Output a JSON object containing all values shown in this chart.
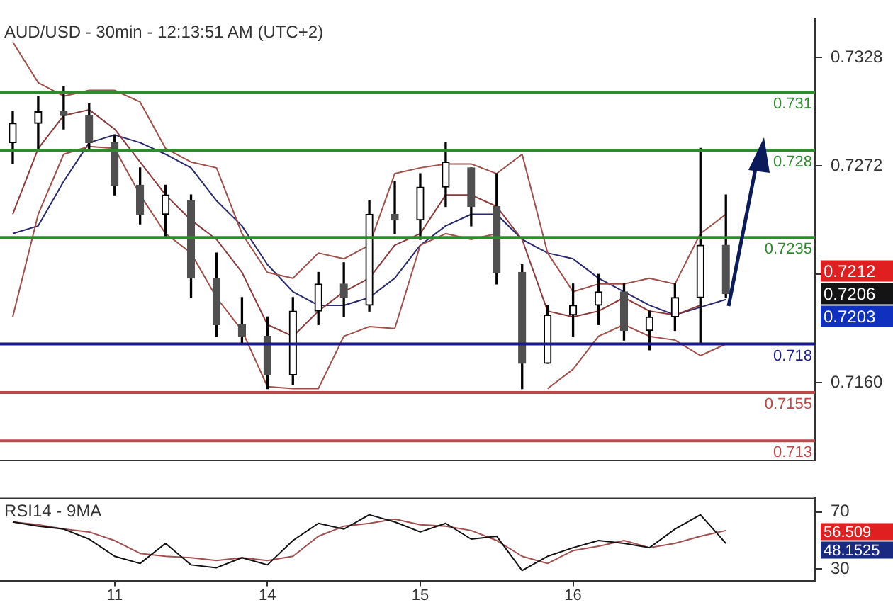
{
  "chart_data": [
    {
      "type": "candlestick",
      "title": "AUD/USD - 30min - 12:13:51 AM (UTC+2)",
      "categories": [
        null,
        null,
        null,
        null,
        "11",
        null,
        null,
        null,
        null,
        null,
        "14",
        null,
        null,
        null,
        null,
        null,
        "15",
        null,
        null,
        null,
        null,
        null,
        "16",
        null,
        null,
        null,
        null,
        null,
        null,
        null,
        null,
        null
      ],
      "ohlc": [
        [
          0.7284,
          0.73,
          0.7273,
          0.7294
        ],
        [
          0.7294,
          0.7308,
          0.7281,
          0.73
        ],
        [
          0.73,
          0.7313,
          0.7291,
          0.7298
        ],
        [
          0.7298,
          0.7304,
          0.7281,
          0.7284
        ],
        [
          0.7284,
          0.7288,
          0.7257,
          0.7262
        ],
        [
          0.7262,
          0.7271,
          0.7242,
          0.7247
        ],
        [
          0.7247,
          0.7262,
          0.7235,
          0.7257
        ],
        [
          0.7254,
          0.7257,
          0.7204,
          0.7214
        ],
        [
          0.7214,
          0.7227,
          0.7184,
          0.719
        ],
        [
          0.719,
          0.7204,
          0.718,
          0.7184
        ],
        [
          0.7184,
          0.7194,
          0.7157,
          0.7164
        ],
        [
          0.7164,
          0.7204,
          0.7159,
          0.7197
        ],
        [
          0.7197,
          0.7217,
          0.719,
          0.7211
        ],
        [
          0.7211,
          0.7222,
          0.7194,
          0.7204
        ],
        [
          0.72,
          0.7254,
          0.7197,
          0.7247
        ],
        [
          0.7247,
          0.7264,
          0.7237,
          0.7244
        ],
        [
          0.7244,
          0.7268,
          0.7234,
          0.7261
        ],
        [
          0.7261,
          0.7284,
          0.7251,
          0.7274
        ],
        [
          0.7271,
          0.7271,
          0.7241,
          0.7251
        ],
        [
          0.7251,
          0.7268,
          0.7211,
          0.7217
        ],
        [
          0.7217,
          0.7221,
          0.7157,
          0.717
        ],
        [
          0.717,
          0.72,
          0.717,
          0.7195
        ],
        [
          0.7195,
          0.7211,
          0.7184,
          0.72
        ],
        [
          0.72,
          0.7216,
          0.719,
          0.7207
        ],
        [
          0.7207,
          0.7211,
          0.7182,
          0.7187
        ],
        [
          0.7187,
          0.7197,
          0.7177,
          0.7194
        ],
        [
          0.7194,
          0.7211,
          0.7187,
          0.7204
        ],
        [
          0.7204,
          0.7281,
          0.718,
          0.7231
        ],
        [
          0.7231,
          0.7257,
          0.7204,
          0.7206
        ],
        null,
        null,
        null
      ],
      "series": [
        {
          "type": "line",
          "color": "#a0504a",
          "values": [
            0.7336,
            0.7315,
            0.7308,
            0.7311,
            0.7311,
            0.7305,
            0.7281,
            0.7274,
            0.7271,
            0.7237,
            0.7217,
            0.7214,
            0.7227,
            0.7224,
            0.7231,
            0.7268,
            0.7271,
            0.7273,
            0.7273,
            0.7268,
            0.7278,
            0.7227,
            0.7207,
            0.7211,
            0.7211,
            0.7214,
            0.7211,
            0.7237,
            0.7247,
            null,
            null,
            null
          ]
        },
        {
          "type": "line",
          "color": "#a0504a",
          "values": [
            0.7194,
            0.7247,
            0.7278,
            0.7282,
            0.7281,
            0.7257,
            0.7237,
            0.7227,
            0.7204,
            0.7187,
            0.7158,
            0.7157,
            0.7157,
            0.7184,
            0.7189,
            0.7188,
            0.7231,
            0.7237,
            0.7234,
            0.7237,
            null,
            0.7157,
            0.7167,
            0.7184,
            0.719,
            0.7184,
            0.7182,
            0.7174,
            0.718,
            null,
            null,
            null
          ]
        },
        {
          "type": "line",
          "color": "#8a3a3a",
          "values": [
            0.7247,
            0.7281,
            0.7298,
            0.7301,
            0.7291,
            0.7274,
            0.7257,
            0.7244,
            0.7234,
            0.7217,
            0.719,
            0.7184,
            0.7197,
            0.7207,
            0.7214,
            0.7231,
            0.7237,
            0.7257,
            0.7257,
            0.7251,
            0.7234,
            0.7197,
            0.7194,
            0.7197,
            0.7204,
            0.7197,
            0.7195,
            0.72,
            null,
            null,
            null,
            null
          ]
        },
        {
          "type": "line",
          "color": "#2a2a6e",
          "values": [
            0.7237,
            0.7241,
            0.7264,
            0.7284,
            0.7288,
            0.7284,
            0.7278,
            0.7271,
            0.7254,
            0.7241,
            0.7221,
            0.7207,
            0.72,
            0.72,
            0.7204,
            0.7214,
            0.7231,
            0.7241,
            0.7247,
            0.7247,
            0.7234,
            0.7227,
            0.7224,
            0.7214,
            0.7207,
            0.72,
            0.7195,
            0.7199,
            0.7203,
            null,
            null,
            null
          ]
        }
      ],
      "ylim": [
        0.712,
        0.7348
      ],
      "yticks": [
        {
          "value": 0.7328,
          "label": "0.7328"
        },
        {
          "value": 0.7272,
          "label": "0.7272"
        },
        {
          "value": 0.7216,
          "label": null
        },
        {
          "value": 0.716,
          "label": "0.7160"
        }
      ],
      "tick_labels": "y",
      "ref_lines": [
        {
          "axis": "y",
          "value": 0.731,
          "label": "0.731",
          "color": "#2e8b2e"
        },
        {
          "axis": "y",
          "value": 0.728,
          "label": "0.728",
          "color": "#2e8b2e"
        },
        {
          "axis": "y",
          "value": 0.7235,
          "label": "0.7235",
          "color": "#2e8b2e"
        },
        {
          "axis": "y",
          "value": 0.718,
          "label": "0.718",
          "color": "#1a1a8c"
        },
        {
          "axis": "y",
          "value": 0.7155,
          "label": "0.7155",
          "color": "#c04848"
        },
        {
          "axis": "y",
          "value": 0.713,
          "label": "0.713",
          "color": "#c04848"
        }
      ],
      "annotations": [
        "0.7212",
        "0.7206",
        "0.7203"
      ]
    },
    {
      "type": "line",
      "title": "RSI14 - 9MA",
      "categories": [
        null,
        null,
        null,
        null,
        "11",
        null,
        null,
        null,
        null,
        null,
        "14",
        null,
        null,
        null,
        null,
        null,
        "15",
        null,
        null,
        null,
        null,
        null,
        "16",
        null,
        null,
        null,
        null,
        null,
        null,
        null,
        null,
        null
      ],
      "series": [
        {
          "color": "#111111",
          "values": [
            63,
            60,
            58,
            51,
            39,
            34,
            48,
            33,
            31,
            38,
            33,
            50,
            62,
            58,
            68,
            63,
            56,
            62,
            51,
            53,
            29,
            39,
            45,
            50,
            48,
            45,
            58,
            68,
            48,
            null,
            null,
            null
          ]
        },
        {
          "color": "#a05050",
          "values": [
            63,
            61,
            58,
            56,
            50,
            41,
            39,
            38,
            36,
            38,
            36,
            39,
            53,
            60,
            62,
            65,
            61,
            60,
            57,
            50,
            39,
            34,
            43,
            46,
            50,
            45,
            48,
            53,
            57,
            null,
            null,
            null
          ]
        }
      ],
      "ylim": [
        22,
        80
      ],
      "yticks": [
        70,
        30
      ],
      "annotations": [
        "56.509",
        "48.1525"
      ]
    }
  ]
}
